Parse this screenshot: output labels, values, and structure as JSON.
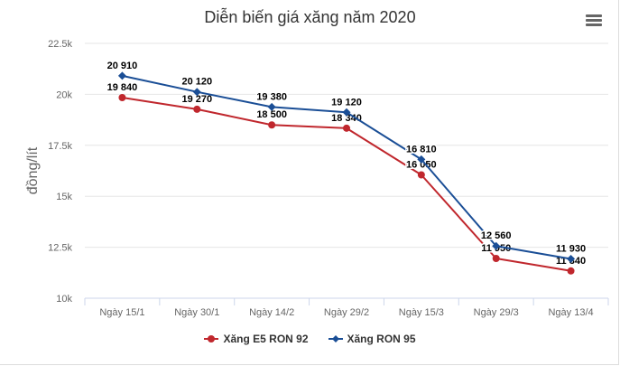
{
  "chart_data": {
    "type": "line",
    "title": "Diễn biến giá xăng năm 2020",
    "ylabel": "đồng/lít",
    "xlabel": "",
    "categories": [
      "Ngày 15/1",
      "Ngày 30/1",
      "Ngày 14/2",
      "Ngày 29/2",
      "Ngày 15/3",
      "Ngày 29/3",
      "Ngày 13/4"
    ],
    "ylim": [
      10000,
      22500
    ],
    "yticks": [
      10000,
      12500,
      15000,
      17500,
      20000,
      22500
    ],
    "ytick_labels": [
      "10k",
      "12.5k",
      "15k",
      "17.5k",
      "20k",
      "22.5k"
    ],
    "grid": "horizontal",
    "legend": "bottom",
    "series": [
      {
        "name": "Xăng E5 RON 92",
        "color": "#c0272d",
        "marker": "circle",
        "values": [
          19840,
          19270,
          18500,
          18340,
          16050,
          11950,
          11340
        ],
        "labels": [
          "19 840",
          "19 270",
          "18 500",
          "18 340",
          "16 050",
          "11 950",
          "11 340"
        ]
      },
      {
        "name": "Xăng RON 95",
        "color": "#1a4e96",
        "marker": "diamond",
        "values": [
          20910,
          20120,
          19380,
          19120,
          16810,
          12560,
          11930
        ],
        "labels": [
          "20 910",
          "20 120",
          "19 380",
          "19 120",
          "16 810",
          "12 560",
          "11 930"
        ]
      }
    ]
  },
  "ui": {
    "menu_icon": "hamburger-icon"
  }
}
